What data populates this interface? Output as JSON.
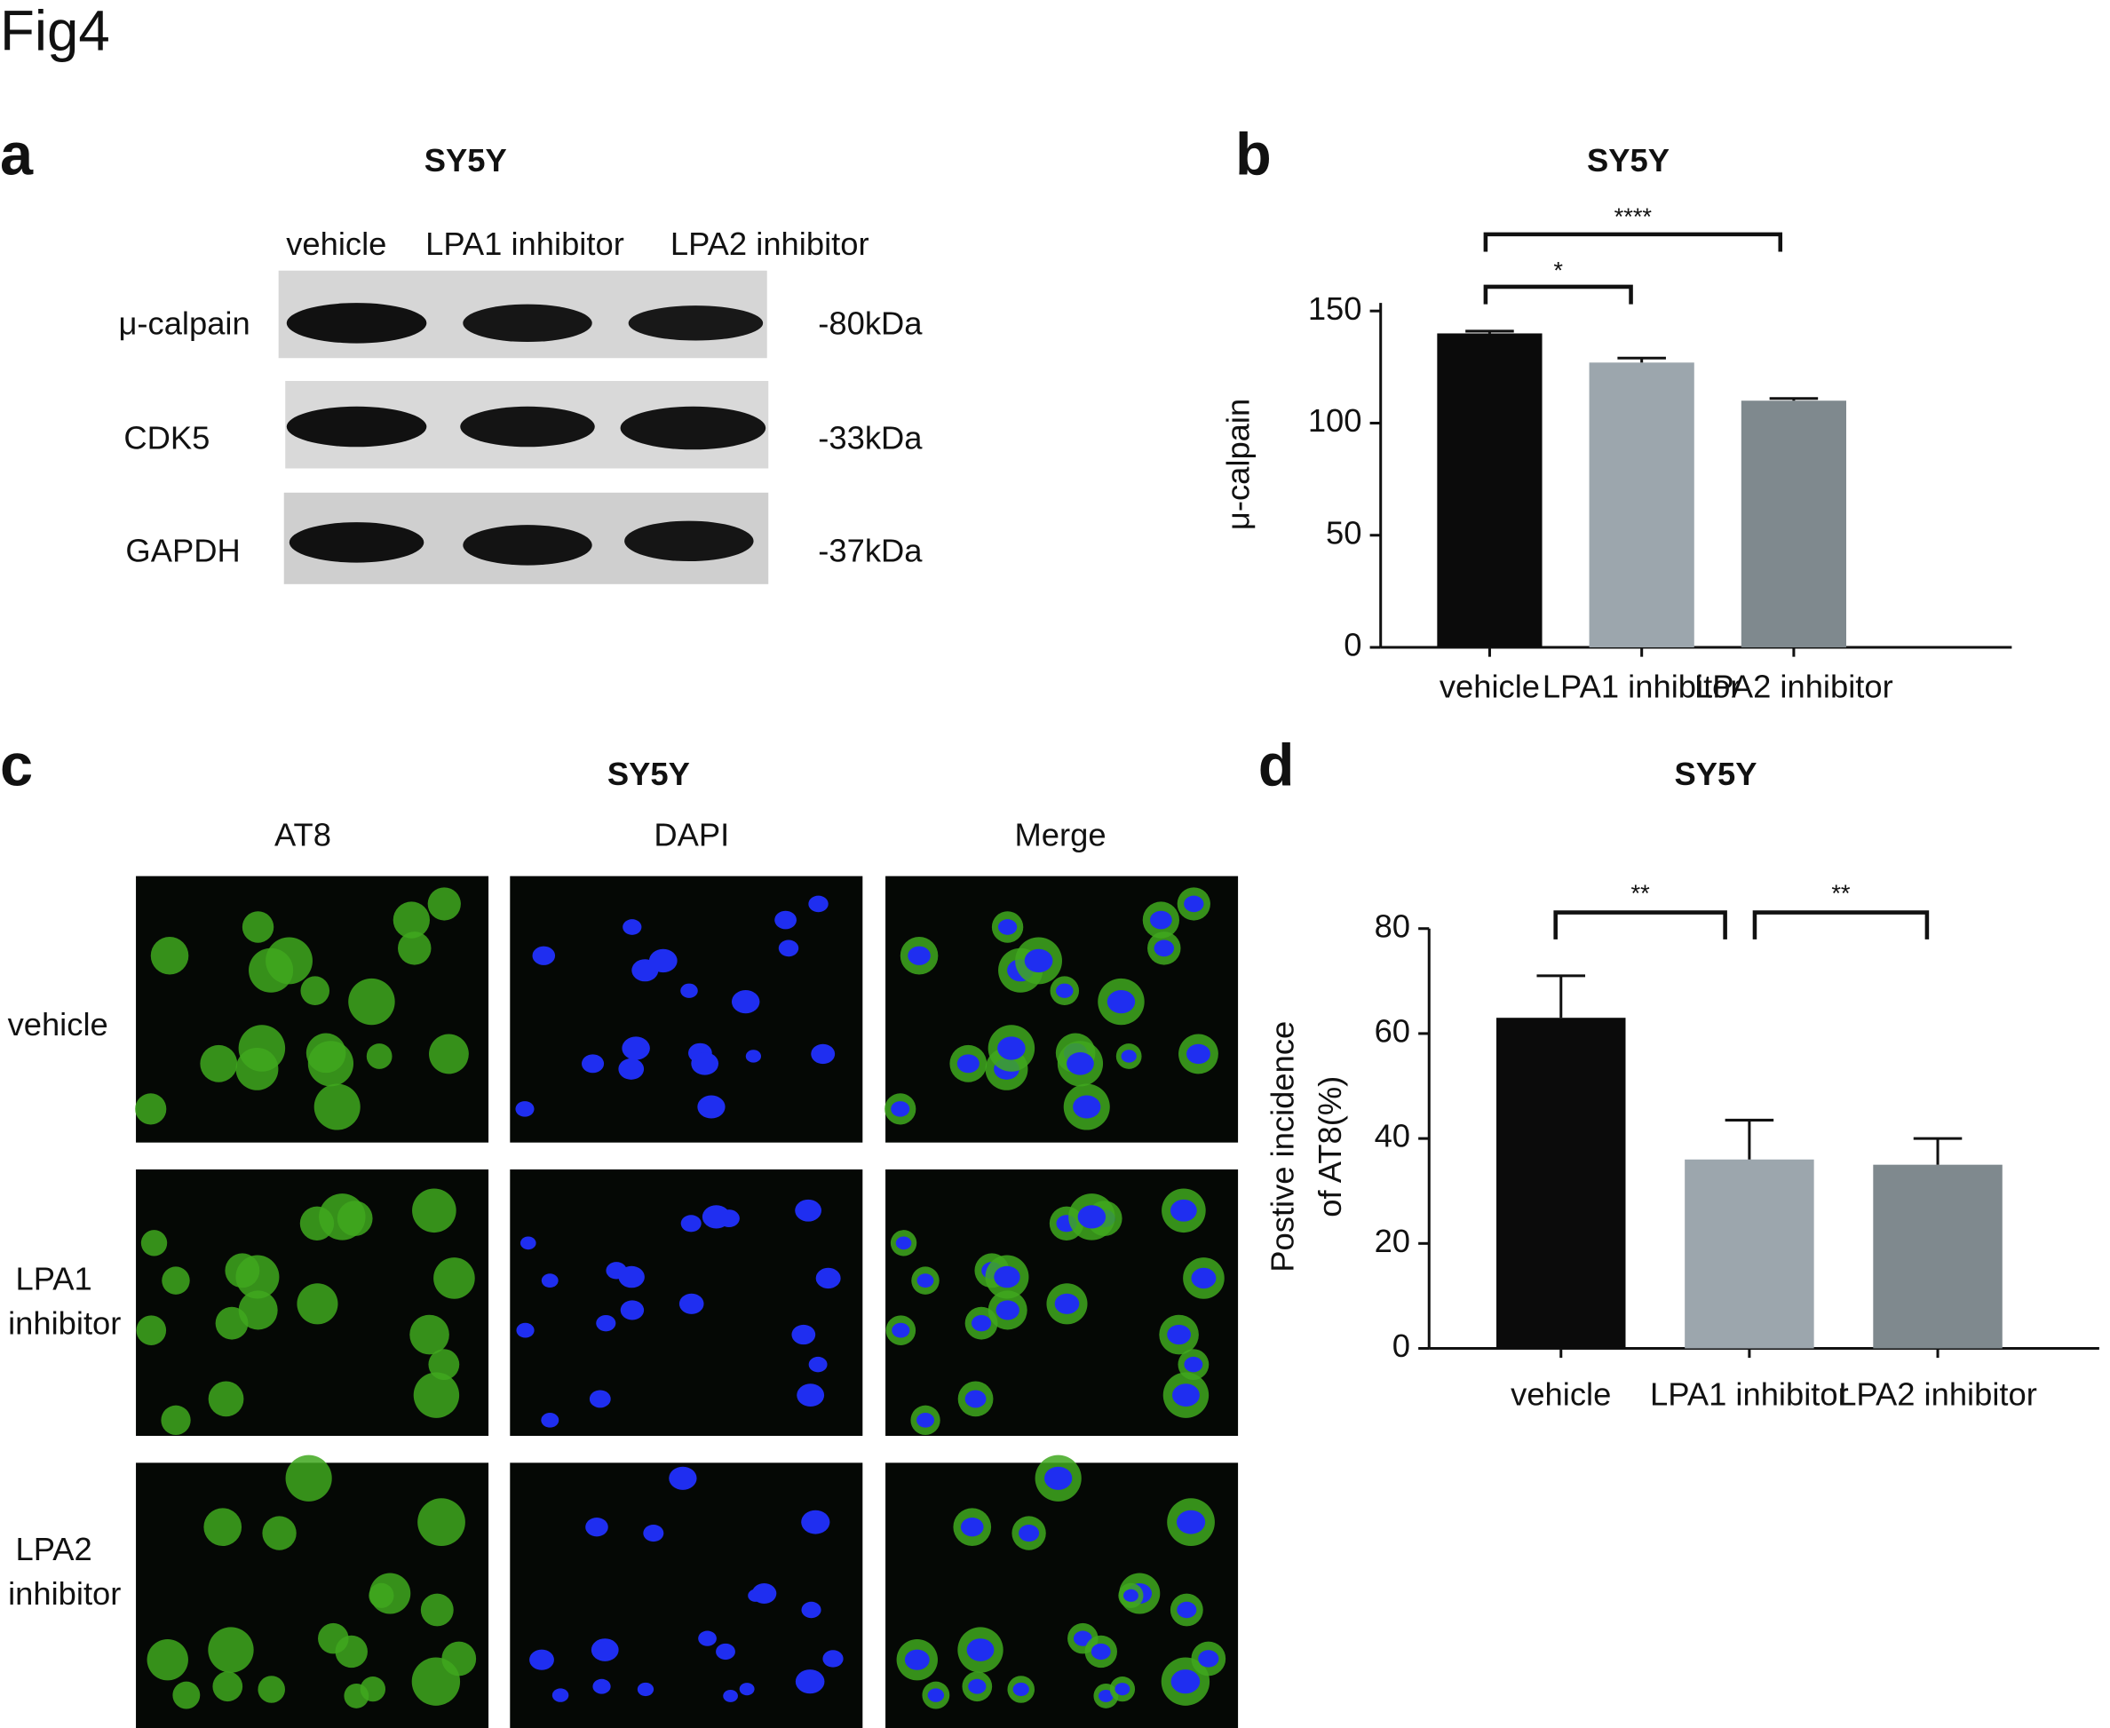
{
  "figure_label": "Fig4",
  "panel_a": {
    "label": "a",
    "title": "SY5Y",
    "lanes": [
      "vehicle",
      "LPA1 inhibitor",
      "LPA2 inhibitor"
    ],
    "rows": [
      {
        "protein": "μ-calpain",
        "size": "-80kDa"
      },
      {
        "protein": "CDK5",
        "size": "-33kDa"
      },
      {
        "protein": "GAPDH",
        "size": "-37kDa"
      }
    ]
  },
  "panel_c": {
    "label": "c",
    "title": "SY5Y",
    "columns": [
      "AT8",
      "DAPI",
      "Merge"
    ],
    "rows": [
      [
        "vehicle"
      ],
      [
        "LPA1",
        "inhibitor"
      ],
      [
        "LPA2",
        "inhibitor"
      ]
    ]
  },
  "chart_data": [
    {
      "type": "bar",
      "panel_label": "b",
      "title": "SY5Y",
      "y_label": [
        "μ-calpain"
      ],
      "categories": [
        "vehicle",
        "LPA1 inhibitor",
        "LPA2 inhibitor"
      ],
      "values": [
        140,
        127,
        110
      ],
      "errors": [
        1,
        2,
        1
      ],
      "colors": [
        "#0b0b0b",
        "#9ca6ad",
        "#7f898e"
      ],
      "ylim": [
        0,
        150
      ],
      "yticks": [
        0,
        50,
        100,
        150
      ],
      "annotations": [
        "*",
        "****"
      ]
    },
    {
      "type": "bar",
      "panel_label": "d",
      "title": "SY5Y",
      "y_label": [
        "Postive incidence",
        "of AT8(%)"
      ],
      "categories": [
        "vehicle",
        "LPA1 inhibitor",
        "LPA2 inhibitor"
      ],
      "values": [
        63,
        36,
        35
      ],
      "errors": [
        8,
        7.5,
        5
      ],
      "colors": [
        "#0b0b0b",
        "#9ca6ad",
        "#7f898e"
      ],
      "ylim": [
        0,
        80
      ],
      "yticks": [
        0,
        20,
        40,
        60,
        80
      ],
      "annotations": [
        "**",
        "**"
      ]
    }
  ]
}
